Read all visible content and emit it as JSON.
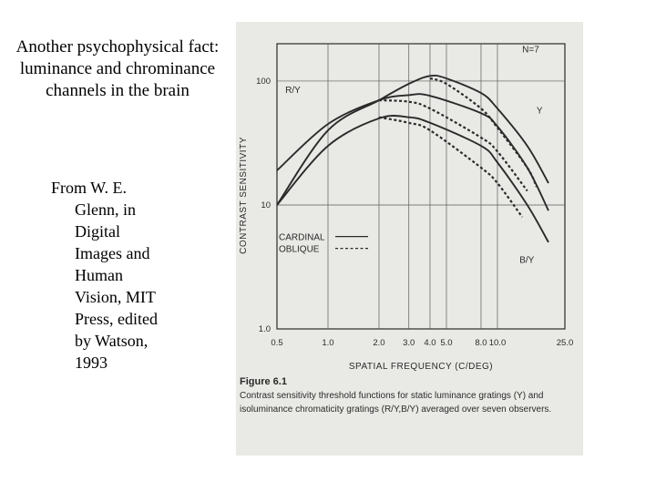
{
  "slide": {
    "title_lines": [
      "Another psychophysical fact:",
      "luminance and chrominance",
      "channels in the brain"
    ],
    "citation_lines": [
      "From W. E.",
      "Glenn, in",
      "Digital",
      "Images and",
      "Human",
      "Vision, MIT",
      "Press, edited",
      "by Watson,",
      "1993"
    ]
  },
  "figure": {
    "heading": "Figure 6.1",
    "caption": "Contrast sensitivity threshold functions for static luminance gratings (Y) and isoluminance chromaticity gratings (R/Y,B/Y) averaged over seven observers."
  },
  "chart_data": {
    "type": "line",
    "xlabel": "SPATIAL FREQUENCY (C/DEG)",
    "ylabel": "CONTRAST SENSITIVITY",
    "x_scale": "log",
    "y_scale": "log",
    "xlim": [
      0.5,
      25.0
    ],
    "ylim": [
      1.0,
      200
    ],
    "x_ticks": [
      0.5,
      1.0,
      2.0,
      3.0,
      4.0,
      5.0,
      8.0,
      10.0,
      25.0
    ],
    "x_tick_labels": [
      "0.5",
      "1.0",
      "2.0",
      "3.0",
      "4.0",
      "5.0",
      "8.0",
      "10.0",
      "25.0"
    ],
    "y_ticks": [
      1.0,
      10,
      100
    ],
    "y_tick_labels": [
      "1.0",
      "10",
      "100"
    ],
    "grid": true,
    "annotations": [
      "N=7",
      "R/Y",
      "Y",
      "B/Y"
    ],
    "legend": {
      "placement": "lower-left",
      "entries": [
        {
          "label": "CARDINAL",
          "style": "solid"
        },
        {
          "label": "OBLIQUE",
          "style": "dashed"
        }
      ]
    },
    "series": [
      {
        "name": "Y",
        "style": "solid",
        "color": "#2a2a2a",
        "x": [
          0.5,
          1.0,
          2.0,
          3.0,
          4.0,
          5.0,
          8.0,
          10.0,
          15.0,
          20.0
        ],
        "y": [
          10,
          40,
          70,
          95,
          110,
          105,
          80,
          60,
          30,
          15
        ]
      },
      {
        "name": "Y",
        "style": "dashed",
        "color": "#2a2a2a",
        "x": [
          4.0,
          5.0,
          8.0,
          10.0,
          15.0,
          17.0
        ],
        "y": [
          105,
          95,
          60,
          42,
          20,
          14
        ]
      },
      {
        "name": "R/Y",
        "style": "solid",
        "color": "#2a2a2a",
        "x": [
          0.5,
          1.0,
          2.0,
          3.0,
          4.0,
          8.0,
          10.0,
          15.0,
          20.0
        ],
        "y": [
          19,
          45,
          70,
          77,
          76,
          55,
          43,
          20,
          9
        ]
      },
      {
        "name": "R/Y",
        "style": "dashed",
        "color": "#2a2a2a",
        "x": [
          2.0,
          3.0,
          4.0,
          8.0,
          10.0,
          15.0
        ],
        "y": [
          70,
          68,
          60,
          35,
          27,
          13
        ]
      },
      {
        "name": "B/Y",
        "style": "solid",
        "color": "#2a2a2a",
        "x": [
          0.5,
          1.0,
          2.0,
          3.0,
          4.0,
          8.0,
          10.0,
          15.0,
          20.0
        ],
        "y": [
          10,
          30,
          50,
          51,
          46,
          30,
          22,
          10,
          5
        ]
      },
      {
        "name": "B/Y",
        "style": "dashed",
        "color": "#2a2a2a",
        "x": [
          2.0,
          3.0,
          4.0,
          8.0,
          10.0,
          14.0
        ],
        "y": [
          51,
          46,
          40,
          20,
          15,
          8
        ]
      }
    ]
  }
}
